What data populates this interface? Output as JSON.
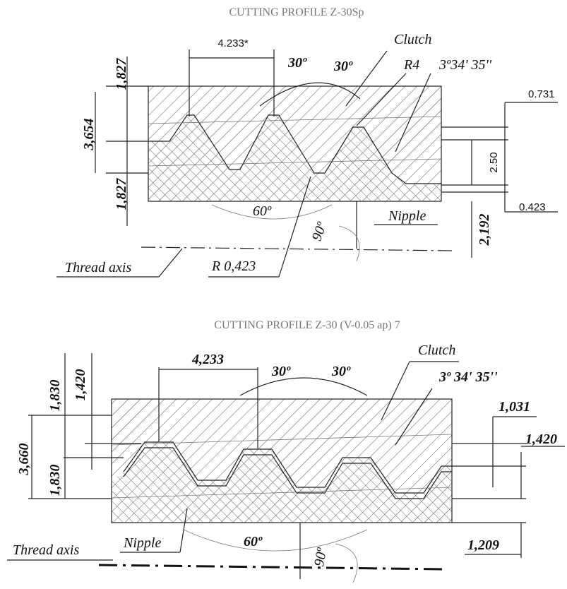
{
  "top": {
    "title": "CUTTING PROFILE Z-30Sp",
    "pitch": "4.233*",
    "angle_left": "30º",
    "angle_right": "30º",
    "clutch": "Clutch",
    "radius_top": "R4",
    "taper": "3º34' 35''",
    "height_upper": "1,827",
    "height_total": "3,654",
    "height_lower": "1,827",
    "right_top": "0.731",
    "right_mid": "2.50",
    "right_bottom": "0.423",
    "angle_base": "60º",
    "angle_right_angle": "90º",
    "nipple": "Nipple",
    "offset": "2,192",
    "axis": "Thread axis",
    "radius_bottom": "R 0,423"
  },
  "bottom": {
    "title": "CUTTING PROFILE Z-30 (V-0.05 ap) 7",
    "pitch": "4,233",
    "angle_left": "30º",
    "angle_right": "30º",
    "clutch": "Clutch",
    "taper": "3º 34' 35''",
    "height_upper": "1,830",
    "height_inner": "1,420",
    "height_total": "3,660",
    "height_lower": "1,830",
    "right_top": "1,031",
    "right_mid": "1,420",
    "nipple": "Nipple",
    "angle_base": "60º",
    "angle_right_angle": "90º",
    "right_bottom": "1,209",
    "axis": "Thread axis"
  }
}
